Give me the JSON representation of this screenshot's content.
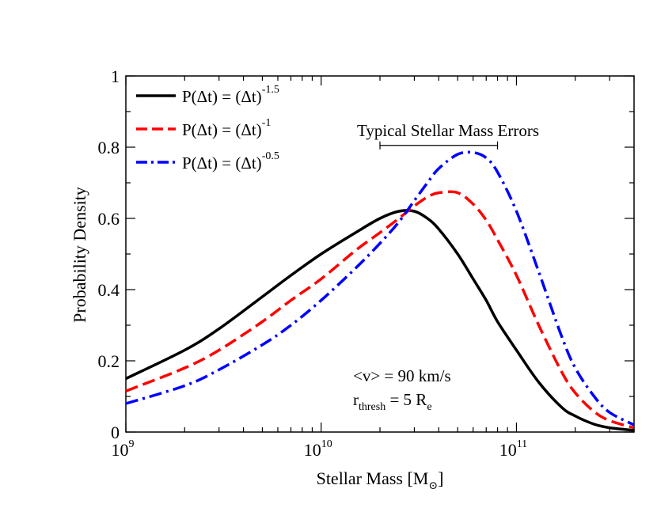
{
  "chart_data": {
    "type": "line",
    "xlabel": "Stellar Mass [M",
    "xlabel_sub": "⊙",
    "xlabel_close": "]",
    "ylabel": "Probability Density",
    "x_scale": "log",
    "xlim": [
      1000000000.0,
      400000000000.0
    ],
    "ylim": [
      0,
      1
    ],
    "x_ticks": [
      {
        "value": 1000000000.0,
        "base": "10",
        "exp": "9"
      },
      {
        "value": 10000000000.0,
        "base": "10",
        "exp": "10"
      },
      {
        "value": 100000000000.0,
        "base": "10",
        "exp": "11"
      }
    ],
    "y_ticks": [
      {
        "value": 0,
        "label": "0"
      },
      {
        "value": 0.2,
        "label": "0.2"
      },
      {
        "value": 0.4,
        "label": "0.4"
      },
      {
        "value": 0.6,
        "label": "0.6"
      },
      {
        "value": 0.8,
        "label": "0.8"
      },
      {
        "value": 1,
        "label": "1"
      }
    ],
    "legend_position": "top-left",
    "series": [
      {
        "name": "P(Δt) = (Δt)",
        "name_sup": "-1.5",
        "color": "#000000",
        "dash": "solid",
        "x": [
          1000000000.0,
          2000000000.0,
          3000000000.0,
          5000000000.0,
          7000000000.0,
          10000000000.0,
          15000000000.0,
          20000000000.0,
          25000000000.0,
          30000000000.0,
          35000000000.0,
          40000000000.0,
          50000000000.0,
          60000000000.0,
          70000000000.0,
          80000000000.0,
          100000000000.0,
          130000000000.0,
          170000000000.0,
          200000000000.0,
          250000000000.0,
          300000000000.0,
          400000000000.0
        ],
        "y": [
          0.15,
          0.23,
          0.29,
          0.38,
          0.44,
          0.5,
          0.56,
          0.6,
          0.62,
          0.62,
          0.6,
          0.57,
          0.5,
          0.43,
          0.37,
          0.31,
          0.23,
          0.14,
          0.07,
          0.045,
          0.022,
          0.012,
          0.005
        ]
      },
      {
        "name": "P(Δt) = (Δt)",
        "name_sup": "-1",
        "color": "#ff0000",
        "dash": "dashed",
        "x": [
          1000000000.0,
          2000000000.0,
          3000000000.0,
          5000000000.0,
          7000000000.0,
          10000000000.0,
          15000000000.0,
          20000000000.0,
          25000000000.0,
          30000000000.0,
          35000000000.0,
          40000000000.0,
          50000000000.0,
          60000000000.0,
          70000000000.0,
          80000000000.0,
          100000000000.0,
          130000000000.0,
          170000000000.0,
          200000000000.0,
          250000000000.0,
          300000000000.0,
          400000000000.0
        ],
        "y": [
          0.115,
          0.18,
          0.23,
          0.31,
          0.37,
          0.43,
          0.51,
          0.56,
          0.6,
          0.635,
          0.66,
          0.672,
          0.672,
          0.64,
          0.595,
          0.54,
          0.44,
          0.3,
          0.17,
          0.11,
          0.057,
          0.032,
          0.012
        ]
      },
      {
        "name": "P(Δt) = (Δt)",
        "name_sup": "-0.5",
        "color": "#0000ff",
        "dash": "dashdot",
        "x": [
          1000000000.0,
          2000000000.0,
          3000000000.0,
          5000000000.0,
          7000000000.0,
          10000000000.0,
          15000000000.0,
          20000000000.0,
          25000000000.0,
          30000000000.0,
          35000000000.0,
          40000000000.0,
          50000000000.0,
          60000000000.0,
          70000000000.0,
          80000000000.0,
          100000000000.0,
          130000000000.0,
          170000000000.0,
          200000000000.0,
          250000000000.0,
          300000000000.0,
          400000000000.0
        ],
        "y": [
          0.08,
          0.13,
          0.175,
          0.245,
          0.3,
          0.37,
          0.46,
          0.53,
          0.59,
          0.65,
          0.7,
          0.74,
          0.78,
          0.785,
          0.77,
          0.73,
          0.62,
          0.45,
          0.27,
          0.18,
          0.1,
          0.055,
          0.02
        ]
      }
    ],
    "annotations": {
      "error_label": "Typical Stellar Mass Errors",
      "error_bar_x": [
        20000000000.0,
        80000000000.0
      ],
      "error_bar_y": 0.805,
      "velocity_text": "<v> = 90 km/s",
      "thresh_r": "r",
      "thresh_sub": "thresh",
      "thresh_mid": " = 5 R",
      "thresh_sub2": "e"
    }
  }
}
